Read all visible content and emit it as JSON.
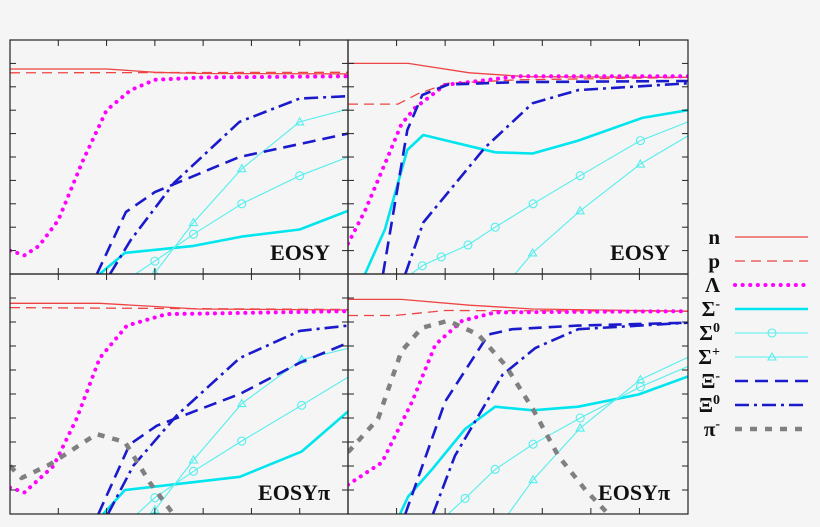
{
  "legend": [
    {
      "key": "n",
      "base": "n",
      "sup": "",
      "color": "#ee4444",
      "style": "solid"
    },
    {
      "key": "p",
      "base": "p",
      "sup": "",
      "color": "#ee4444",
      "style": "dashed"
    },
    {
      "key": "Lambda",
      "base": "Λ",
      "sup": "",
      "color": "#ff00ff",
      "style": "dotted"
    },
    {
      "key": "Sigma-",
      "base": "Σ",
      "sup": "-",
      "color": "#00e5ee",
      "style": "thick-solid"
    },
    {
      "key": "Sigma0",
      "base": "Σ",
      "sup": "0",
      "color": "#55eeee",
      "style": "thin-circles"
    },
    {
      "key": "Sigma+",
      "base": "Σ",
      "sup": "+",
      "color": "#55eeee",
      "style": "thin-triangles"
    },
    {
      "key": "Xi-",
      "base": "Ξ",
      "sup": "-",
      "color": "#1a1acc",
      "style": "dashed"
    },
    {
      "key": "Xi0",
      "base": "Ξ",
      "sup": "0",
      "color": "#1a1acc",
      "style": "dash-dot"
    },
    {
      "key": "pi-",
      "base": "π",
      "sup": "-",
      "color": "#808080",
      "style": "thick-dashed"
    }
  ],
  "chart_data": [
    {
      "type": "line",
      "panel": "top-left",
      "label": "EOSY",
      "xlim": [
        0,
        7
      ],
      "ylim": [
        0,
        10
      ],
      "grid": false,
      "series": [
        {
          "name": "n",
          "points": [
            [
              0,
              8.76
            ],
            [
              2,
              8.76
            ],
            [
              3,
              8.62
            ],
            [
              4,
              8.57
            ],
            [
              7,
              8.55
            ]
          ]
        },
        {
          "name": "p",
          "points": [
            [
              0,
              8.6
            ],
            [
              7,
              8.62
            ]
          ]
        },
        {
          "name": "Λ",
          "points": [
            [
              0,
              1.0
            ],
            [
              0.3,
              0.8
            ],
            [
              0.6,
              1.2
            ],
            [
              1,
              2.3
            ],
            [
              1.5,
              4.8
            ],
            [
              2,
              7.0
            ],
            [
              2.5,
              7.86
            ],
            [
              3,
              8.3
            ],
            [
              4,
              8.4
            ],
            [
              7,
              8.45
            ]
          ]
        },
        {
          "name": "Σ-",
          "points": [
            [
              1.86,
              0
            ],
            [
              2.38,
              0.9
            ],
            [
              3.8,
              1.2
            ],
            [
              4.8,
              1.6
            ],
            [
              6,
              1.9
            ],
            [
              7,
              2.7
            ]
          ]
        },
        {
          "name": "Σ0",
          "points": [
            [
              2.6,
              0
            ],
            [
              3.0,
              0.55
            ],
            [
              3.8,
              1.7
            ],
            [
              4.8,
              3.0
            ],
            [
              6.0,
              4.2
            ],
            [
              7,
              5.0
            ]
          ]
        },
        {
          "name": "Σ+",
          "points": [
            [
              2.9,
              -0.4
            ],
            [
              3.0,
              0.05
            ],
            [
              3.8,
              2.2
            ],
            [
              4.8,
              4.5
            ],
            [
              6.0,
              6.5
            ],
            [
              7,
              7.05
            ]
          ]
        },
        {
          "name": "Ξ-",
          "points": [
            [
              1.8,
              0
            ],
            [
              2.4,
              2.65
            ],
            [
              3.0,
              3.5
            ],
            [
              4.75,
              5.0
            ],
            [
              7,
              6.0
            ]
          ]
        },
        {
          "name": "Ξ0",
          "points": [
            [
              2.07,
              0
            ],
            [
              2.5,
              1.45
            ],
            [
              3.4,
              3.9
            ],
            [
              4.75,
              6.5
            ],
            [
              6,
              7.5
            ],
            [
              7,
              7.6
            ]
          ]
        }
      ]
    },
    {
      "type": "line",
      "panel": "top-right",
      "label": "EOSY",
      "xlim": [
        0,
        7
      ],
      "ylim": [
        0,
        10
      ],
      "grid": false,
      "series": [
        {
          "name": "n",
          "points": [
            [
              0,
              9.0
            ],
            [
              1.24,
              9.0
            ],
            [
              2.5,
              8.6
            ],
            [
              3.7,
              8.43
            ],
            [
              7,
              8.4
            ]
          ]
        },
        {
          "name": "p",
          "points": [
            [
              0,
              7.26
            ],
            [
              1.03,
              7.26
            ],
            [
              1.44,
              7.7
            ],
            [
              2.06,
              8.15
            ],
            [
              3.5,
              8.3
            ],
            [
              7,
              8.4
            ]
          ]
        },
        {
          "name": "Λ",
          "points": [
            [
              0,
              1.3
            ],
            [
              0.35,
              2.7
            ],
            [
              0.82,
              5.0
            ],
            [
              1.1,
              6.4
            ],
            [
              1.38,
              7.1
            ],
            [
              2.0,
              8.08
            ],
            [
              3.5,
              8.45
            ],
            [
              7,
              8.45
            ]
          ]
        },
        {
          "name": "Σ-",
          "points": [
            [
              0.35,
              0
            ],
            [
              0.76,
              1.9
            ],
            [
              1.22,
              5.3
            ],
            [
              1.55,
              5.94
            ],
            [
              3.03,
              5.2
            ],
            [
              3.8,
              5.15
            ],
            [
              4.74,
              5.7
            ],
            [
              6.06,
              6.67
            ],
            [
              7,
              7.0
            ]
          ]
        },
        {
          "name": "Σ0",
          "points": [
            [
              1.3,
              0
            ],
            [
              1.53,
              0.35
            ],
            [
              1.92,
              0.73
            ],
            [
              2.47,
              1.24
            ],
            [
              3.03,
              2.0
            ],
            [
              3.81,
              3.0
            ],
            [
              4.78,
              4.2
            ],
            [
              6.02,
              5.7
            ],
            [
              7,
              6.5
            ]
          ]
        },
        {
          "name": "Σ+",
          "points": [
            [
              3.44,
              0
            ],
            [
              3.8,
              0.9
            ],
            [
              4.78,
              2.7
            ],
            [
              6.02,
              4.7
            ],
            [
              7,
              5.9
            ]
          ]
        },
        {
          "name": "Ξ-",
          "points": [
            [
              0.72,
              0
            ],
            [
              1.22,
              6.15
            ],
            [
              1.53,
              7.65
            ],
            [
              2.06,
              8.1
            ],
            [
              3.5,
              8.2
            ],
            [
              7,
              8.25
            ]
          ]
        },
        {
          "name": "Ξ0",
          "points": [
            [
              1.18,
              0
            ],
            [
              1.55,
              2.2
            ],
            [
              2.82,
              5.4
            ],
            [
              3.8,
              7.3
            ],
            [
              4.74,
              7.86
            ],
            [
              7,
              8.15
            ]
          ]
        }
      ]
    },
    {
      "type": "line",
      "panel": "bottom-left",
      "label": "EOSYπ",
      "xlim": [
        0,
        7
      ],
      "ylim": [
        0,
        10
      ],
      "grid": false,
      "series": [
        {
          "name": "n",
          "points": [
            [
              0,
              8.78
            ],
            [
              1.86,
              8.78
            ],
            [
              3.9,
              8.54
            ],
            [
              7,
              8.5
            ]
          ]
        },
        {
          "name": "p",
          "points": [
            [
              0,
              8.6
            ],
            [
              7,
              8.52
            ]
          ]
        },
        {
          "name": "Λ",
          "points": [
            [
              0,
              1.1
            ],
            [
              0.3,
              0.9
            ],
            [
              0.9,
              2.0
            ],
            [
              1.38,
              3.97
            ],
            [
              1.86,
              6.5
            ],
            [
              2.42,
              7.85
            ],
            [
              3.24,
              8.33
            ],
            [
              7,
              8.45
            ]
          ]
        },
        {
          "name": "Σ-",
          "points": [
            [
              1.93,
              0
            ],
            [
              2.38,
              1.0
            ],
            [
              4.76,
              1.55
            ],
            [
              6.04,
              2.6
            ],
            [
              7,
              4.27
            ]
          ]
        },
        {
          "name": "Σ0",
          "points": [
            [
              2.63,
              0
            ],
            [
              3.0,
              0.68
            ],
            [
              3.8,
              1.78
            ],
            [
              4.8,
              3.04
            ],
            [
              6.04,
              4.53
            ],
            [
              7,
              5.7
            ]
          ]
        },
        {
          "name": "Σ+",
          "points": [
            [
              2.9,
              -0.3
            ],
            [
              3.0,
              0.17
            ],
            [
              3.8,
              2.25
            ],
            [
              4.8,
              4.6
            ],
            [
              6.04,
              6.43
            ],
            [
              7,
              6.9
            ]
          ]
        },
        {
          "name": "Ξ-",
          "points": [
            [
              1.83,
              0
            ],
            [
              2.48,
              2.9
            ],
            [
              3.04,
              3.68
            ],
            [
              4.76,
              5.0
            ],
            [
              6.0,
              6.3
            ],
            [
              7,
              7.13
            ]
          ]
        },
        {
          "name": "Ξ0",
          "points": [
            [
              2.03,
              0
            ],
            [
              2.55,
              2.0
            ],
            [
              3.45,
              4.1
            ],
            [
              4.76,
              6.5
            ],
            [
              6.0,
              7.63
            ],
            [
              7,
              7.85
            ]
          ]
        },
        {
          "name": "π-",
          "points": [
            [
              0,
              2.0
            ],
            [
              0.24,
              1.5
            ],
            [
              0.83,
              2.07
            ],
            [
              1.79,
              3.33
            ],
            [
              2.38,
              3.0
            ],
            [
              2.9,
              1.3
            ],
            [
              3.38,
              0
            ]
          ]
        }
      ]
    },
    {
      "type": "line",
      "panel": "bottom-right",
      "label": "EOSYπ",
      "xlim": [
        0,
        7
      ],
      "ylim": [
        0,
        10
      ],
      "grid": false,
      "series": [
        {
          "name": "n",
          "points": [
            [
              0,
              8.94
            ],
            [
              1.1,
              8.94
            ],
            [
              2.5,
              8.7
            ],
            [
              3.8,
              8.54
            ],
            [
              7,
              8.45
            ]
          ]
        },
        {
          "name": "p",
          "points": [
            [
              0,
              8.27
            ],
            [
              0.97,
              8.27
            ],
            [
              2.0,
              8.48
            ],
            [
              7,
              8.45
            ]
          ]
        },
        {
          "name": "Λ",
          "points": [
            [
              0,
              1.22
            ],
            [
              0.7,
              2.15
            ],
            [
              1.32,
              4.68
            ],
            [
              1.8,
              7.06
            ],
            [
              2.35,
              8.05
            ],
            [
              3.03,
              8.4
            ],
            [
              7,
              8.45
            ]
          ]
        },
        {
          "name": "Σ-",
          "points": [
            [
              1.07,
              0
            ],
            [
              1.24,
              0.73
            ],
            [
              1.73,
              1.86
            ],
            [
              2.41,
              3.54
            ],
            [
              3.03,
              4.47
            ],
            [
              3.8,
              4.32
            ],
            [
              4.74,
              4.47
            ],
            [
              5.98,
              4.98
            ],
            [
              7,
              5.73
            ]
          ]
        },
        {
          "name": "Σ0",
          "points": [
            [
              2.06,
              0
            ],
            [
              2.41,
              0.65
            ],
            [
              3.03,
              1.86
            ],
            [
              3.81,
              2.91
            ],
            [
              4.78,
              4.0
            ],
            [
              6.02,
              5.3
            ],
            [
              7,
              6.15
            ]
          ]
        },
        {
          "name": "Σ+",
          "points": [
            [
              3.3,
              0
            ],
            [
              3.81,
              1.43
            ],
            [
              4.78,
              3.58
            ],
            [
              6.02,
              5.6
            ],
            [
              7,
              6.53
            ]
          ]
        },
        {
          "name": "Ξ-",
          "points": [
            [
              1.18,
              0
            ],
            [
              2.0,
              4.68
            ],
            [
              2.89,
              7.48
            ],
            [
              3.38,
              7.7
            ],
            [
              4.74,
              7.85
            ],
            [
              7,
              7.97
            ]
          ]
        },
        {
          "name": "Ξ0",
          "points": [
            [
              1.75,
              0
            ],
            [
              2.2,
              2.42
            ],
            [
              3.18,
              5.8
            ],
            [
              3.86,
              6.92
            ],
            [
              4.74,
              7.7
            ],
            [
              7,
              7.97
            ]
          ]
        },
        {
          "name": "π-",
          "points": [
            [
              0,
              2.57
            ],
            [
              0.62,
              3.97
            ],
            [
              1.1,
              6.78
            ],
            [
              1.52,
              7.76
            ],
            [
              2.06,
              8.05
            ],
            [
              2.68,
              7.48
            ],
            [
              3.24,
              6.2
            ],
            [
              3.8,
              4.39
            ],
            [
              4.33,
              2.42
            ],
            [
              4.89,
              1.0
            ],
            [
              5.36,
              0
            ]
          ]
        }
      ]
    }
  ]
}
